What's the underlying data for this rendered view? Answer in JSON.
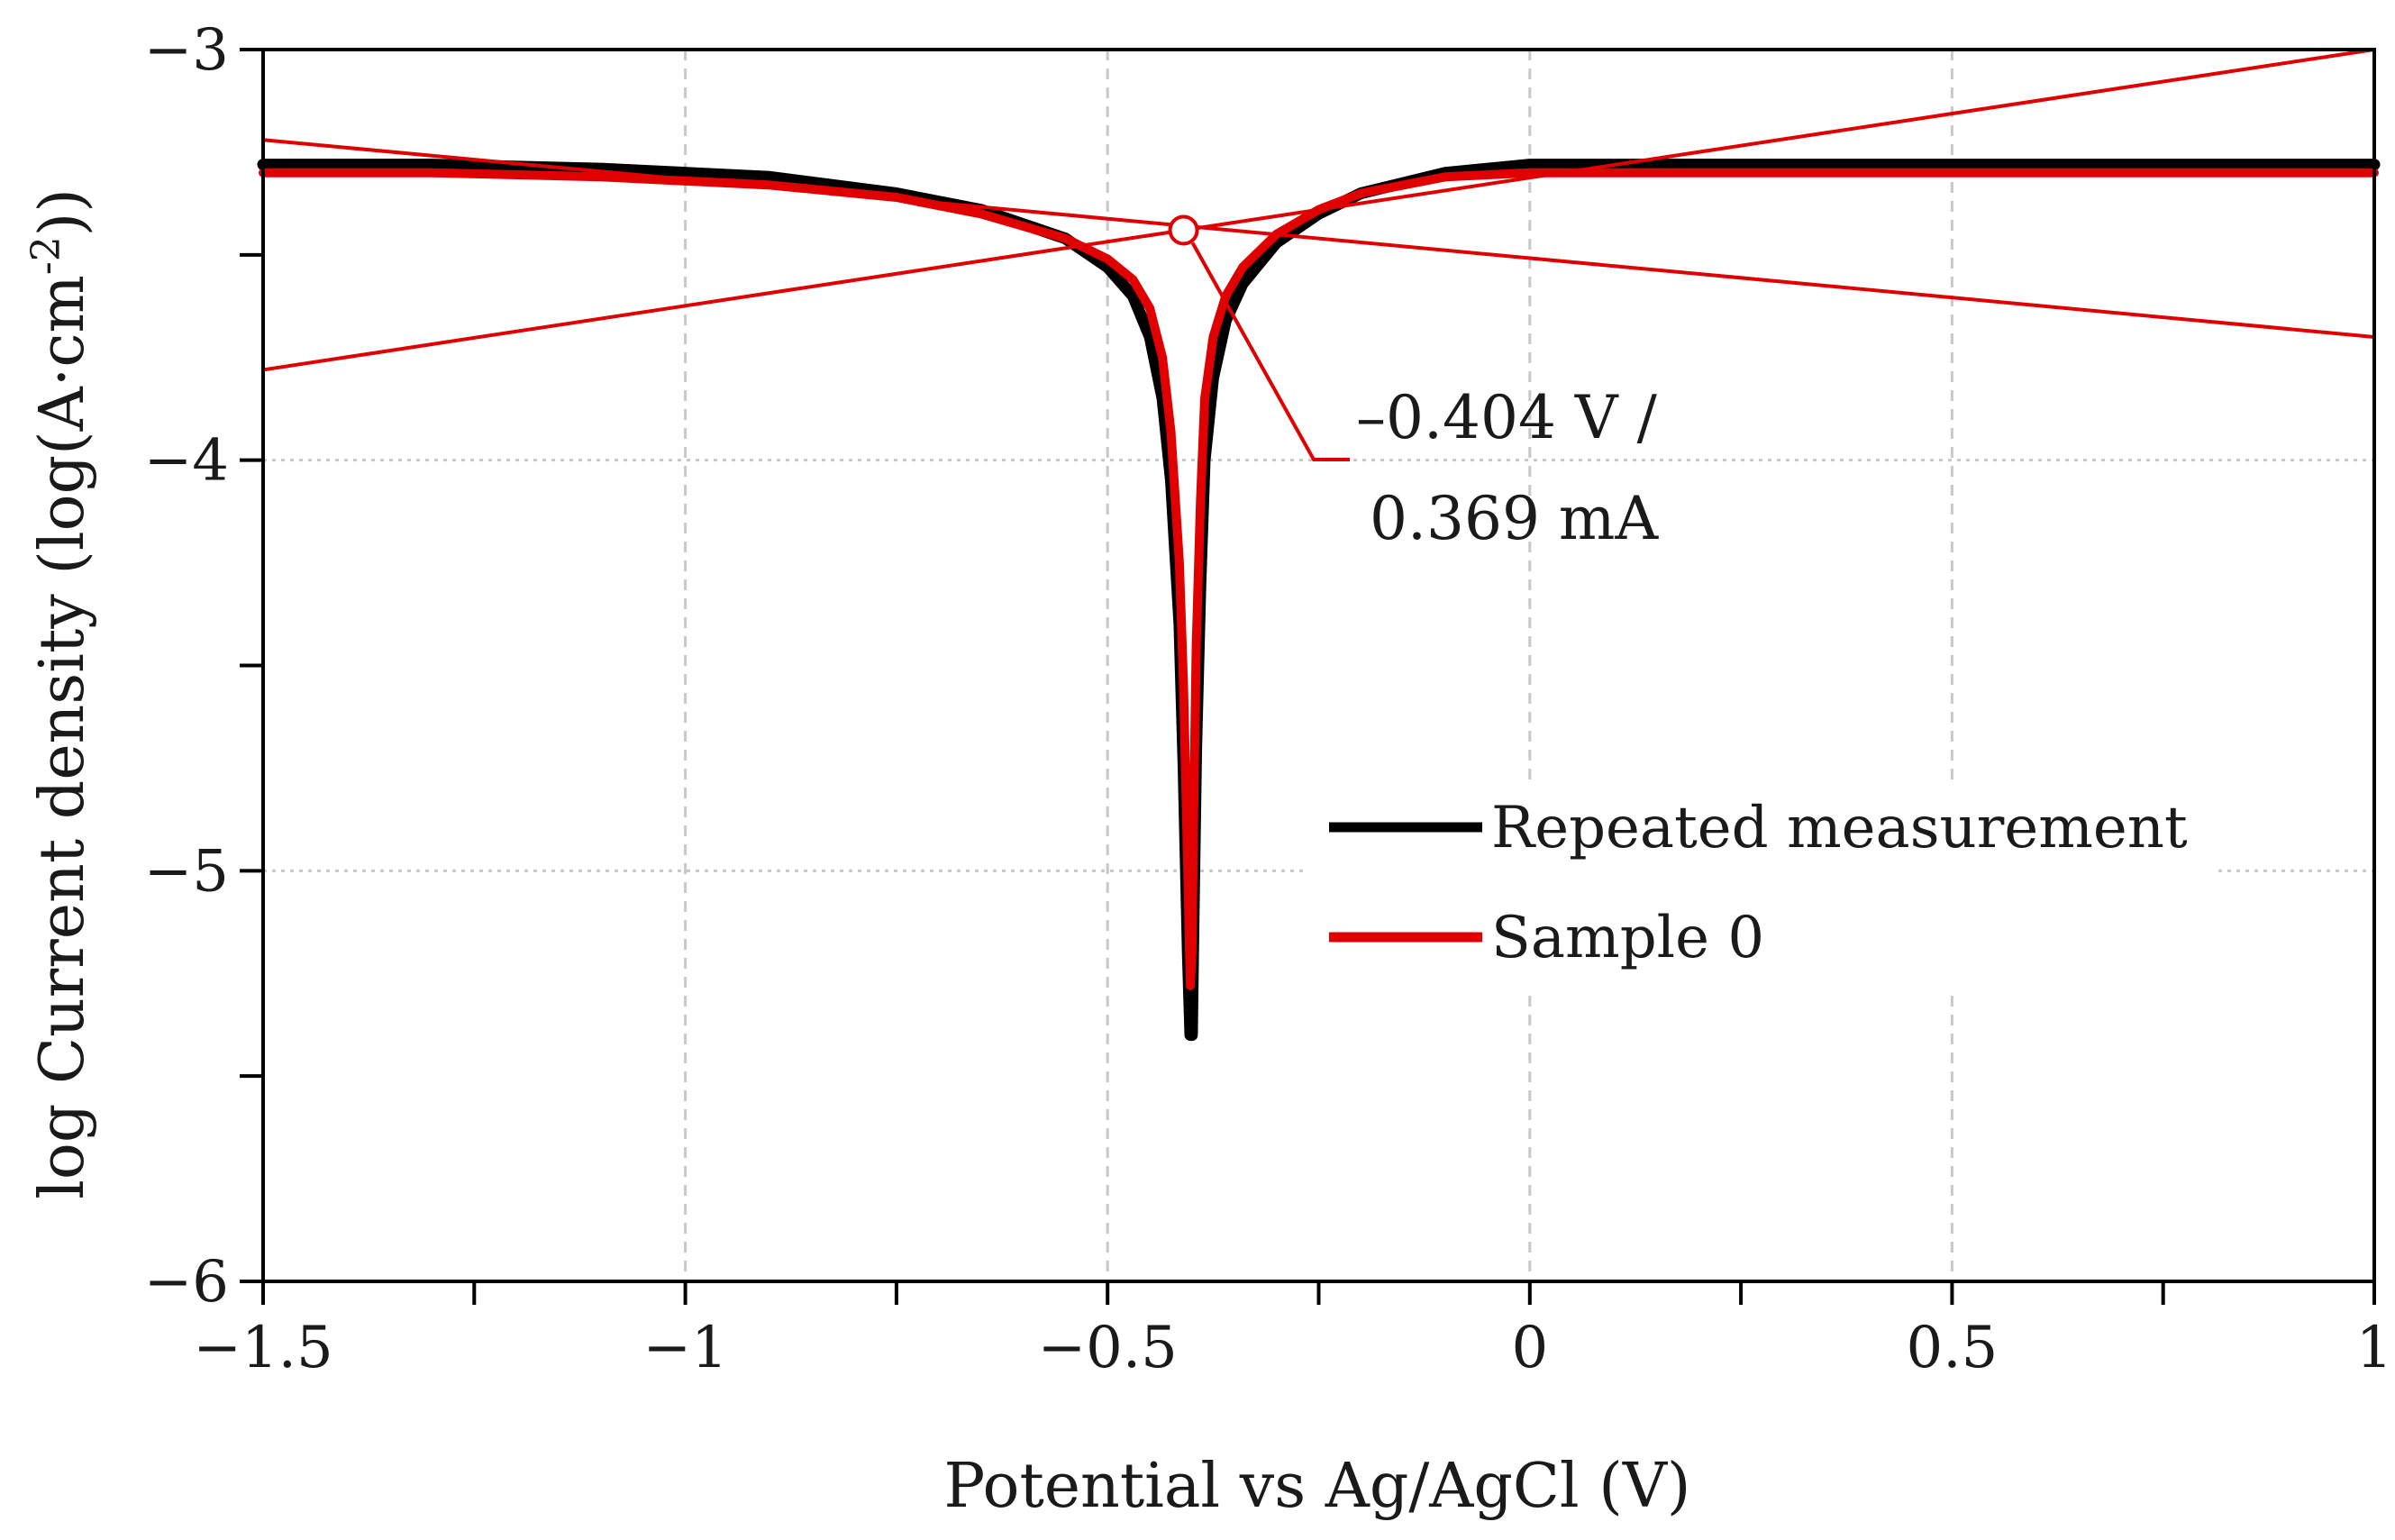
{
  "chart_data": {
    "type": "line",
    "title": "",
    "xlabel": "Potential vs Ag/AgCl (V)",
    "ylabel_main": "log Current density (log(A·cm",
    "ylabel_sup": "-2",
    "ylabel_end": "))",
    "xlim": [
      -1.5,
      1
    ],
    "ylim": [
      -6,
      -3
    ],
    "xticks": [
      -1.5,
      -1,
      -0.5,
      0,
      0.5,
      1
    ],
    "xtick_labels": [
      "−1.5",
      "−1",
      "−0.5",
      "0",
      "0.5",
      "1"
    ],
    "yticks": [
      -6,
      -5,
      -4,
      -3
    ],
    "ytick_labels": [
      "−6",
      "−5",
      "−4",
      "−3"
    ],
    "grid": "dashed",
    "legend_position": "center-right",
    "series": [
      {
        "name": "Repeated measurement",
        "color": "#000000",
        "x": [
          -1.5,
          -1.3,
          -1.1,
          -0.9,
          -0.75,
          -0.65,
          -0.55,
          -0.5,
          -0.47,
          -0.45,
          -0.435,
          -0.425,
          -0.415,
          -0.41,
          -0.405,
          -0.402,
          -0.4,
          -0.398,
          -0.395,
          -0.39,
          -0.385,
          -0.375,
          -0.36,
          -0.34,
          -0.3,
          -0.25,
          -0.2,
          -0.1,
          0,
          0.2,
          0.5,
          1
        ],
        "y": [
          -3.28,
          -3.28,
          -3.29,
          -3.31,
          -3.35,
          -3.39,
          -3.46,
          -3.53,
          -3.6,
          -3.7,
          -3.85,
          -4.05,
          -4.4,
          -4.75,
          -5.2,
          -5.4,
          -5.4,
          -5.1,
          -4.7,
          -4.3,
          -4.0,
          -3.8,
          -3.66,
          -3.57,
          -3.47,
          -3.4,
          -3.35,
          -3.3,
          -3.28,
          -3.28,
          -3.28,
          -3.28
        ]
      },
      {
        "name": "Sample 0",
        "color": "#e00000",
        "x": [
          -1.5,
          -1.3,
          -1.1,
          -0.9,
          -0.75,
          -0.65,
          -0.55,
          -0.5,
          -0.47,
          -0.45,
          -0.435,
          -0.425,
          -0.415,
          -0.41,
          -0.405,
          -0.402,
          -0.4,
          -0.398,
          -0.395,
          -0.39,
          -0.385,
          -0.375,
          -0.36,
          -0.34,
          -0.3,
          -0.25,
          -0.2,
          -0.1,
          0,
          0.2,
          0.5,
          1
        ],
        "y": [
          -3.3,
          -3.3,
          -3.31,
          -3.33,
          -3.36,
          -3.4,
          -3.46,
          -3.51,
          -3.56,
          -3.63,
          -3.75,
          -3.93,
          -4.25,
          -4.55,
          -5.0,
          -5.28,
          -5.2,
          -4.85,
          -4.45,
          -4.1,
          -3.85,
          -3.7,
          -3.6,
          -3.53,
          -3.45,
          -3.39,
          -3.35,
          -3.31,
          -3.3,
          -3.3,
          -3.3,
          -3.3
        ]
      }
    ],
    "tafel_lines": [
      {
        "color": "#e00000",
        "x": [
          -1.5,
          1
        ],
        "y": [
          -3.22,
          -3.7
        ]
      },
      {
        "color": "#e00000",
        "x": [
          -1.5,
          1
        ],
        "y": [
          -3.78,
          -3.0
        ]
      }
    ],
    "annotation": {
      "point": {
        "x": -0.41,
        "y": -3.44
      },
      "color": "#e00000",
      "line1": "–0.404 V /",
      "line2": "0.369 mA"
    }
  }
}
